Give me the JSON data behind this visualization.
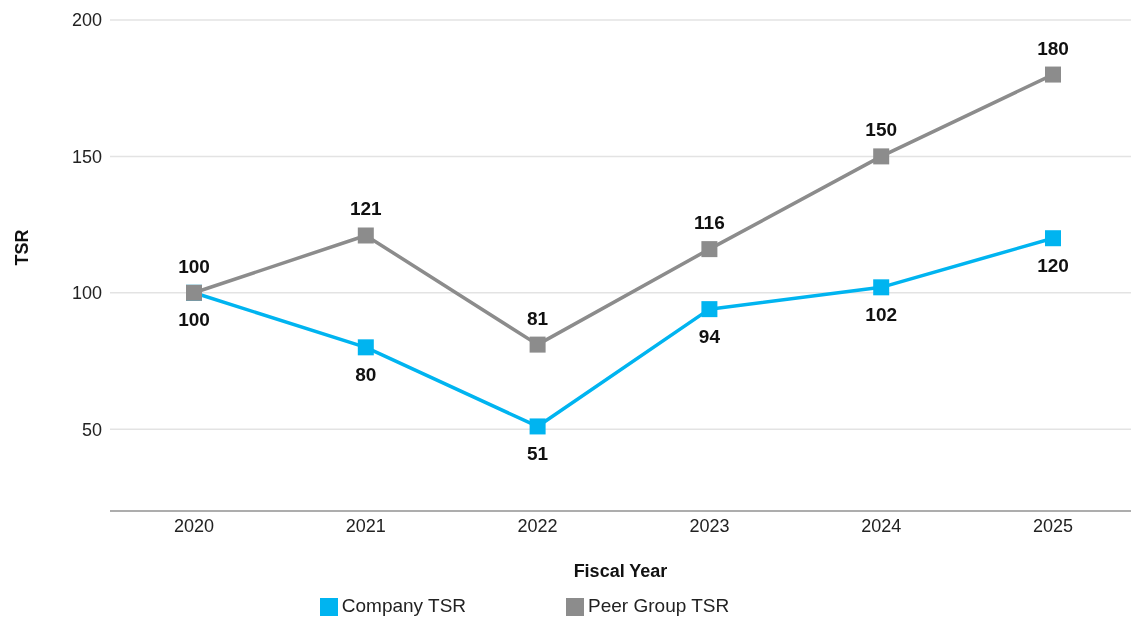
{
  "chart_data": {
    "type": "line",
    "xlabel": "Fiscal Year",
    "ylabel": "TSR",
    "categories": [
      "2020",
      "2021",
      "2022",
      "2023",
      "2024",
      "2025"
    ],
    "series": [
      {
        "name": "Company TSR",
        "color": "#00b4f0",
        "values": [
          100,
          80,
          51,
          94,
          102,
          120
        ]
      },
      {
        "name": "Peer Group TSR",
        "color": "#8c8c8c",
        "values": [
          100,
          121,
          81,
          116,
          150,
          180
        ]
      }
    ],
    "ylim": [
      20,
      200
    ],
    "yticks": [
      50,
      100,
      150,
      200
    ],
    "grid": "y",
    "legend": "bottom",
    "marker": "square",
    "line_style": "solid",
    "data_labels": true
  }
}
